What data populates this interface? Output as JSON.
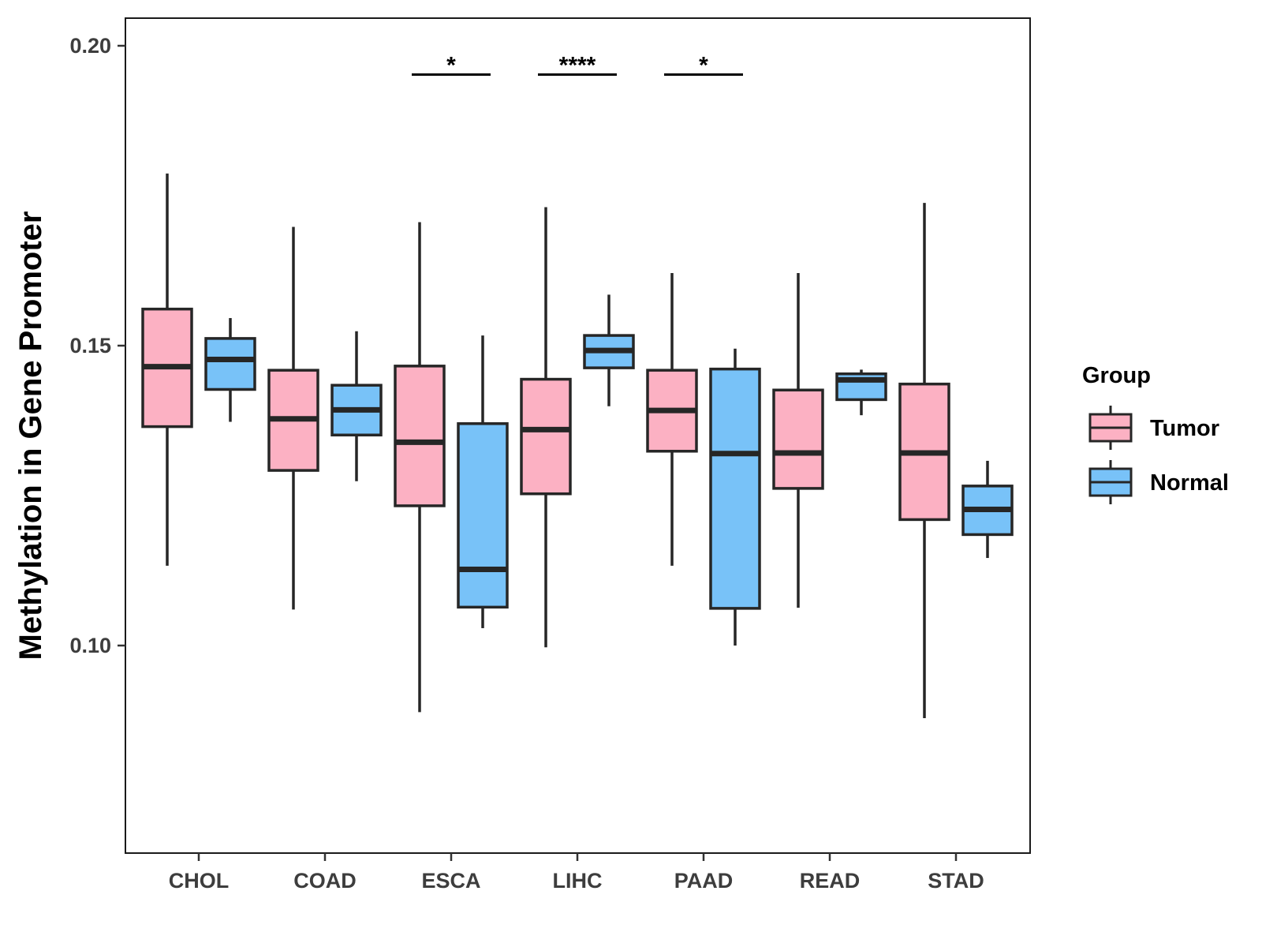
{
  "chart_data": {
    "type": "boxplot",
    "title": "",
    "xlabel": "",
    "ylabel": "Methylation in Gene Promoter",
    "ylim": [
      0.065,
      0.205
    ],
    "yticks": [
      0.1,
      0.15,
      0.2
    ],
    "ytick_labels": [
      "0.10",
      "0.15",
      "0.20"
    ],
    "categories": [
      "CHOL",
      "COAD",
      "ESCA",
      "LIHC",
      "PAAD",
      "READ",
      "STAD"
    ],
    "grid": false,
    "legend": {
      "title": "Group",
      "position": "right",
      "entries": [
        {
          "name": "Tumor",
          "color": "#FCB1C3"
        },
        {
          "name": "Normal",
          "color": "#78C2F8"
        }
      ]
    },
    "series": [
      {
        "name": "Tumor",
        "color": "#FCB1C3",
        "boxes": [
          {
            "category": "CHOL",
            "whisker_low": 0.1133,
            "q1": 0.1365,
            "median": 0.1465,
            "q3": 0.1561,
            "whisker_high": 0.1787
          },
          {
            "category": "COAD",
            "whisker_low": 0.106,
            "q1": 0.1292,
            "median": 0.1378,
            "q3": 0.1459,
            "whisker_high": 0.1698
          },
          {
            "category": "ESCA",
            "whisker_low": 0.0889,
            "q1": 0.1233,
            "median": 0.1339,
            "q3": 0.1466,
            "whisker_high": 0.1706
          },
          {
            "category": "LIHC",
            "whisker_low": 0.0997,
            "q1": 0.1253,
            "median": 0.136,
            "q3": 0.1444,
            "whisker_high": 0.1731
          },
          {
            "category": "PAAD",
            "whisker_low": 0.1133,
            "q1": 0.1324,
            "median": 0.1392,
            "q3": 0.1459,
            "whisker_high": 0.1621
          },
          {
            "category": "READ",
            "whisker_low": 0.1063,
            "q1": 0.1262,
            "median": 0.1321,
            "q3": 0.1426,
            "whisker_high": 0.1621
          },
          {
            "category": "STAD",
            "whisker_low": 0.0879,
            "q1": 0.121,
            "median": 0.1321,
            "q3": 0.1436,
            "whisker_high": 0.1738
          }
        ]
      },
      {
        "name": "Normal",
        "color": "#78C2F8",
        "boxes": [
          {
            "category": "CHOL",
            "whisker_low": 0.1373,
            "q1": 0.1427,
            "median": 0.1477,
            "q3": 0.1512,
            "whisker_high": 0.1546
          },
          {
            "category": "COAD",
            "whisker_low": 0.1274,
            "q1": 0.1351,
            "median": 0.1393,
            "q3": 0.1434,
            "whisker_high": 0.1524
          },
          {
            "category": "ESCA",
            "whisker_low": 0.1029,
            "q1": 0.1064,
            "median": 0.1127,
            "q3": 0.137,
            "whisker_high": 0.1517
          },
          {
            "category": "LIHC",
            "whisker_low": 0.1399,
            "q1": 0.1463,
            "median": 0.1492,
            "q3": 0.1517,
            "whisker_high": 0.1585
          },
          {
            "category": "PAAD",
            "whisker_low": 0.1,
            "q1": 0.1062,
            "median": 0.132,
            "q3": 0.1461,
            "whisker_high": 0.1495
          },
          {
            "category": "READ",
            "whisker_low": 0.1384,
            "q1": 0.141,
            "median": 0.1443,
            "q3": 0.1453,
            "whisker_high": 0.146
          },
          {
            "category": "STAD",
            "whisker_low": 0.1146,
            "q1": 0.1185,
            "median": 0.1227,
            "q3": 0.1266,
            "whisker_high": 0.1308
          }
        ]
      }
    ],
    "annotations": [
      {
        "category": "ESCA",
        "label": "*",
        "y": 0.1952
      },
      {
        "category": "LIHC",
        "label": "****",
        "y": 0.1952
      },
      {
        "category": "PAAD",
        "label": "*",
        "y": 0.1952
      }
    ]
  }
}
